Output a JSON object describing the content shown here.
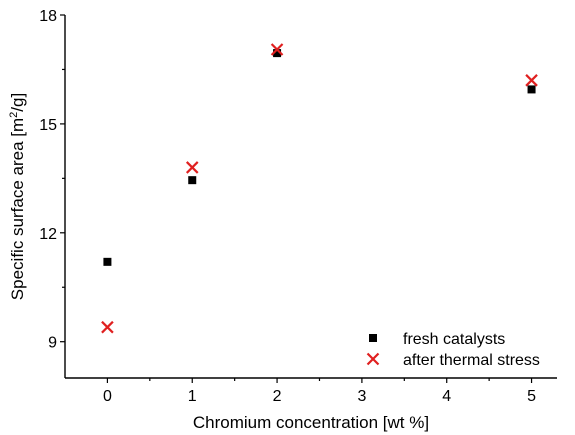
{
  "chart_data": {
    "type": "scatter",
    "title": "",
    "xlabel": "Chromium concentration [wt %]",
    "ylabel": "Specific surface area [m²/g]",
    "xlim": [
      -0.5,
      5.3
    ],
    "ylim": [
      8.0,
      18.0
    ],
    "xticks": [
      0,
      1,
      2,
      3,
      4,
      5
    ],
    "yticks": [
      9,
      12,
      15,
      18
    ],
    "grid": false,
    "legend_position": "bottom-right",
    "series": [
      {
        "name": "fresh catalysts",
        "marker": "square",
        "color": "#000000",
        "x": [
          0,
          1,
          2,
          5
        ],
        "y": [
          11.2,
          13.45,
          16.95,
          15.95
        ]
      },
      {
        "name": "after thermal stress",
        "marker": "x",
        "color": "#e02020",
        "x": [
          0,
          1,
          2,
          5
        ],
        "y": [
          9.4,
          13.8,
          17.05,
          16.2
        ]
      }
    ]
  }
}
